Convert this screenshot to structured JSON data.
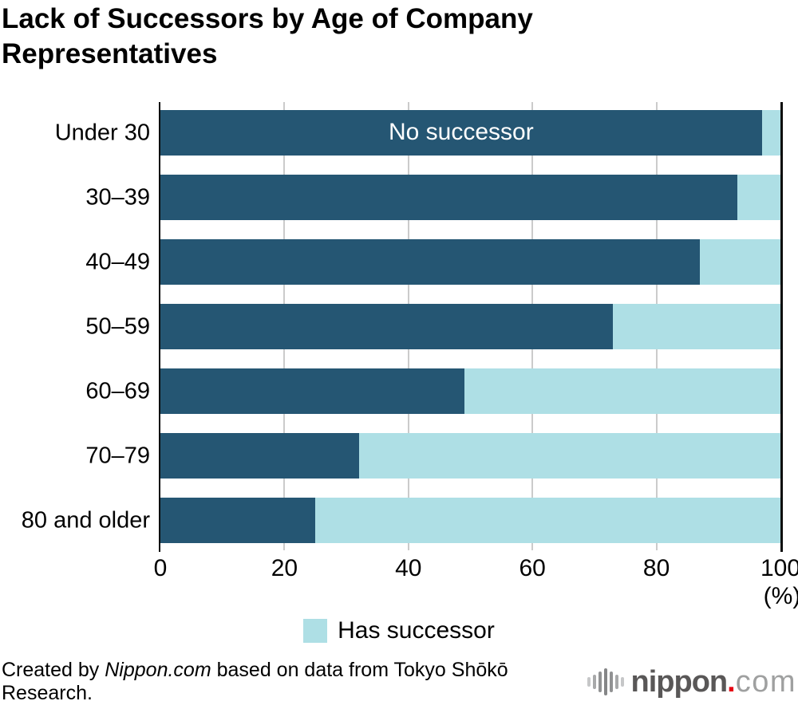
{
  "page": {
    "title_line1": "Lack of Successors by Age of Company",
    "title_line2": "Representatives"
  },
  "chart_data": {
    "type": "bar",
    "orientation": "horizontal",
    "stacked": true,
    "title": "Lack of Successors by Age of Company Representatives",
    "categories": [
      "Under 30",
      "30–39",
      "40–49",
      "50–59",
      "60–69",
      "70–79",
      "80 and older"
    ],
    "series": [
      {
        "name": "No successor",
        "color": "#255673",
        "values": [
          97,
          93,
          87,
          73,
          49,
          32,
          25
        ]
      },
      {
        "name": "Has successor",
        "color": "#aedfe5",
        "values": [
          3,
          7,
          13,
          27,
          51,
          68,
          75
        ]
      }
    ],
    "xlim": [
      0,
      100
    ],
    "x_ticks": [
      0,
      20,
      40,
      60,
      80,
      100
    ],
    "x_unit_label": "(%)",
    "grid": "vertical",
    "grid_color": "#cbcbcb",
    "axis_color": "#0a0a0a",
    "bar_label": {
      "text": "No successor",
      "bar_index": 0
    },
    "legend": [
      {
        "label": "Has successor",
        "color": "#aedfe5"
      }
    ],
    "legend_position": "bottom-center"
  },
  "footer": {
    "credit_prefix": "Created by ",
    "credit_source": "Nippon.com",
    "credit_suffix": " based on data from Tokyo Shōkō Research.",
    "logo": {
      "name": "nippon",
      "dot": ".",
      "tld": "com"
    }
  }
}
